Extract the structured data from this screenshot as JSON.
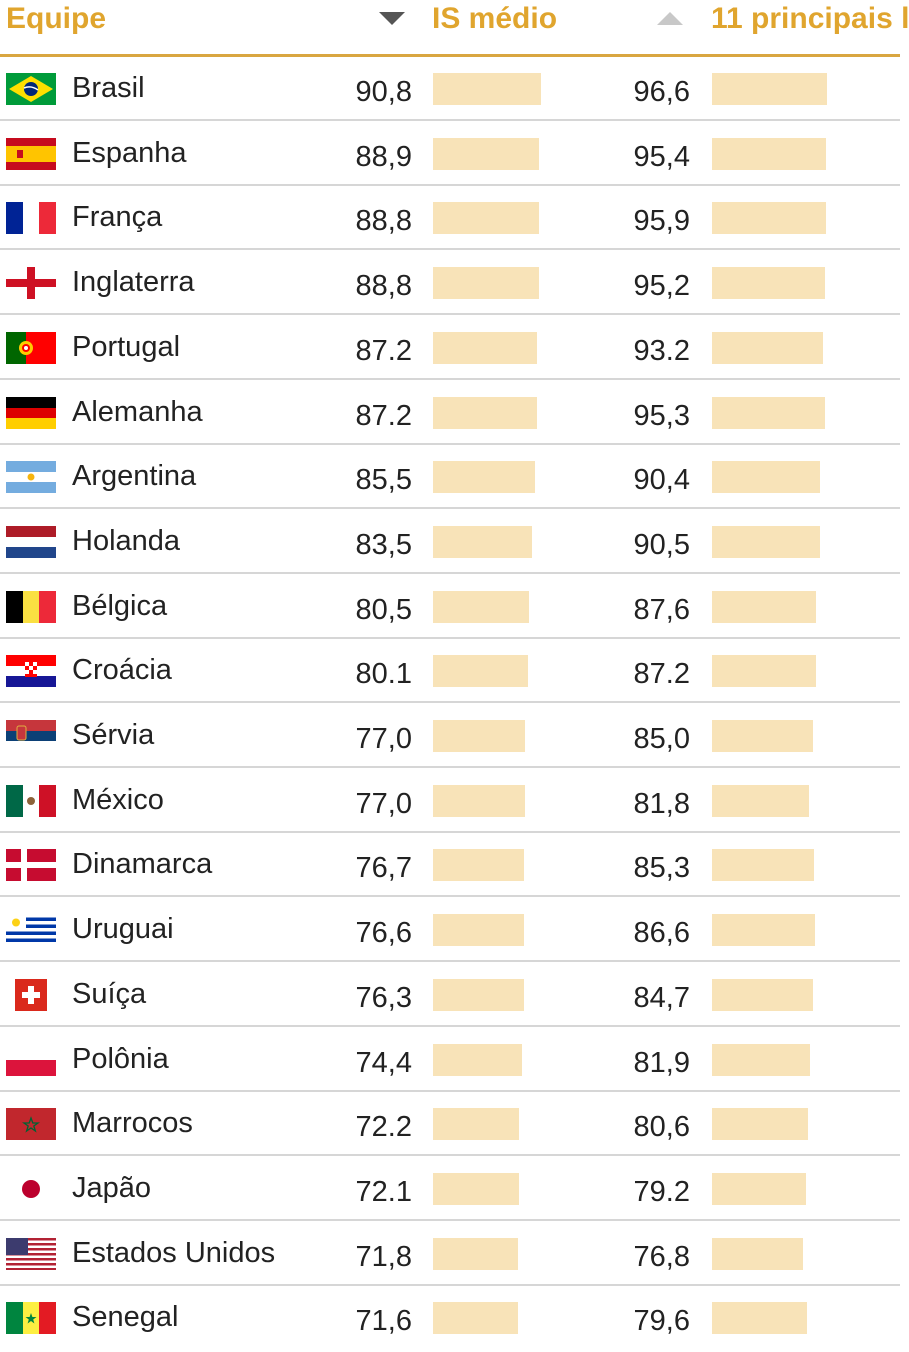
{
  "header": {
    "team_label": "Equipe",
    "avg_label": "IS médio",
    "top11_label": "11 principais l"
  },
  "colors": {
    "accent": "#e0a52e",
    "bar": "#f8e3b8",
    "divider": "#d6d6d6"
  },
  "chart_data": {
    "type": "table",
    "columns": [
      "Equipe",
      "IS médio",
      "11 principais"
    ],
    "sort": {
      "column": "IS médio",
      "direction": "descending"
    },
    "bar_scale": {
      "min": 0,
      "max": 100
    },
    "rows": [
      {
        "team": "Brasil",
        "flag": "brazil-flag-icon",
        "avg": 90.8,
        "avg_text": "90,8",
        "top11": 96.6,
        "top11_text": "96,6"
      },
      {
        "team": "Espanha",
        "flag": "spain-flag-icon",
        "avg": 88.9,
        "avg_text": "88,9",
        "top11": 95.4,
        "top11_text": "95,4"
      },
      {
        "team": "França",
        "flag": "france-flag-icon",
        "avg": 88.8,
        "avg_text": "88,8",
        "top11": 95.9,
        "top11_text": "95,9"
      },
      {
        "team": "Inglaterra",
        "flag": "england-flag-icon",
        "avg": 88.8,
        "avg_text": "88,8",
        "top11": 95.2,
        "top11_text": "95,2"
      },
      {
        "team": "Portugal",
        "flag": "portugal-flag-icon",
        "avg": 87.2,
        "avg_text": "87.2",
        "top11": 93.2,
        "top11_text": "93.2"
      },
      {
        "team": "Alemanha",
        "flag": "germany-flag-icon",
        "avg": 87.2,
        "avg_text": "87.2",
        "top11": 95.3,
        "top11_text": "95,3"
      },
      {
        "team": "Argentina",
        "flag": "argentina-flag-icon",
        "avg": 85.5,
        "avg_text": "85,5",
        "top11": 90.4,
        "top11_text": "90,4"
      },
      {
        "team": "Holanda",
        "flag": "netherlands-flag-icon",
        "avg": 83.5,
        "avg_text": "83,5",
        "top11": 90.5,
        "top11_text": "90,5"
      },
      {
        "team": "Bélgica",
        "flag": "belgium-flag-icon",
        "avg": 80.5,
        "avg_text": "80,5",
        "top11": 87.6,
        "top11_text": "87,6"
      },
      {
        "team": "Croácia",
        "flag": "croatia-flag-icon",
        "avg": 80.1,
        "avg_text": "80.1",
        "top11": 87.2,
        "top11_text": "87.2"
      },
      {
        "team": "Sérvia",
        "flag": "serbia-flag-icon",
        "avg": 77.0,
        "avg_text": "77,0",
        "top11": 85.0,
        "top11_text": "85,0"
      },
      {
        "team": "México",
        "flag": "mexico-flag-icon",
        "avg": 77.0,
        "avg_text": "77,0",
        "top11": 81.8,
        "top11_text": "81,8"
      },
      {
        "team": "Dinamarca",
        "flag": "denmark-flag-icon",
        "avg": 76.7,
        "avg_text": "76,7",
        "top11": 85.3,
        "top11_text": "85,3"
      },
      {
        "team": "Uruguai",
        "flag": "uruguay-flag-icon",
        "avg": 76.6,
        "avg_text": "76,6",
        "top11": 86.6,
        "top11_text": "86,6"
      },
      {
        "team": "Suíça",
        "flag": "switzerland-flag-icon",
        "avg": 76.3,
        "avg_text": "76,3",
        "top11": 84.7,
        "top11_text": "84,7"
      },
      {
        "team": "Polônia",
        "flag": "poland-flag-icon",
        "avg": 74.4,
        "avg_text": "74,4",
        "top11": 81.9,
        "top11_text": "81,9"
      },
      {
        "team": "Marrocos",
        "flag": "morocco-flag-icon",
        "avg": 72.2,
        "avg_text": "72.2",
        "top11": 80.6,
        "top11_text": "80,6"
      },
      {
        "team": "Japão",
        "flag": "japan-flag-icon",
        "avg": 72.1,
        "avg_text": "72.1",
        "top11": 79.2,
        "top11_text": "79.2"
      },
      {
        "team": "Estados Unidos",
        "flag": "usa-flag-icon",
        "avg": 71.8,
        "avg_text": "71,8",
        "top11": 76.8,
        "top11_text": "76,8"
      },
      {
        "team": "Senegal",
        "flag": "senegal-flag-icon",
        "avg": 71.6,
        "avg_text": "71,6",
        "top11": 79.6,
        "top11_text": "79,6"
      }
    ]
  }
}
